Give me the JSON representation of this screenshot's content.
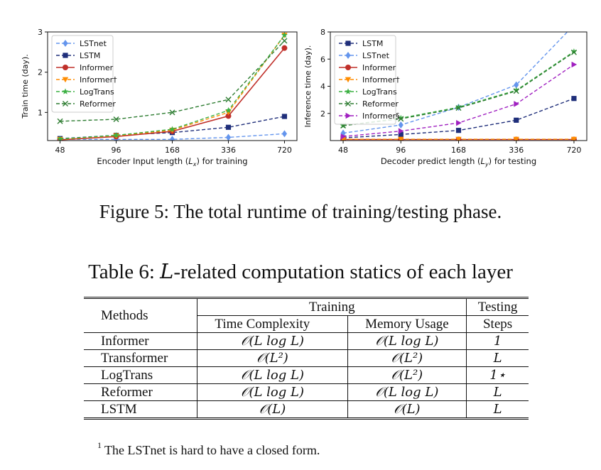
{
  "figure": {
    "caption": "Figure 5: The total runtime of training/testing phase.",
    "charts_are_in": "chart_data"
  },
  "chart_data": [
    {
      "type": "line",
      "title": "",
      "xlabel": "Encoder Input length (L_x) for training",
      "ylabel": "Train time (day).",
      "categories": [
        "48",
        "96",
        "168",
        "336",
        "720"
      ],
      "ylim": [
        0.3,
        3
      ],
      "yticks": [
        1,
        2,
        3
      ],
      "x_scale": "categorical, evenly spaced",
      "legend_position": "top-left",
      "series": [
        {
          "name": "LSTnet",
          "color": "#6495ed",
          "style": "dashed",
          "marker": "diamond",
          "values": [
            0.33,
            0.33,
            0.33,
            0.38,
            0.47
          ]
        },
        {
          "name": "LSTM",
          "color": "#1f2e7a",
          "style": "dashed",
          "marker": "square",
          "values": [
            0.35,
            0.43,
            0.5,
            0.63,
            0.9
          ]
        },
        {
          "name": "Informer",
          "color": "#c0302a",
          "style": "solid",
          "marker": "circle",
          "values": [
            0.32,
            0.4,
            0.53,
            0.91,
            2.6
          ]
        },
        {
          "name": "Informer†",
          "color": "#ff8c00",
          "style": "dashed",
          "marker": "triangle-down",
          "values": [
            0.33,
            0.42,
            0.56,
            1.0,
            2.92
          ]
        },
        {
          "name": "LogTrans",
          "color": "#3cb043",
          "style": "dashed",
          "marker": "star",
          "values": [
            0.34,
            0.43,
            0.58,
            1.05,
            2.92
          ]
        },
        {
          "name": "Reformer",
          "color": "#2e7d32",
          "style": "dashed",
          "marker": "x",
          "values": [
            0.78,
            0.83,
            1.0,
            1.32,
            2.78
          ]
        }
      ]
    },
    {
      "type": "line",
      "title": "",
      "xlabel": "Decoder predict length (L_y) for testing",
      "ylabel": "Inference time (day).",
      "categories": [
        "48",
        "96",
        "168",
        "336",
        "720"
      ],
      "ylim": [
        0,
        8
      ],
      "yticks": [
        2,
        4,
        6,
        8
      ],
      "x_scale": "categorical, evenly spaced",
      "legend_position": "top-left",
      "series": [
        {
          "name": "LSTM",
          "color": "#1f2e7a",
          "style": "dashed",
          "marker": "square",
          "values": [
            0.2,
            0.45,
            0.75,
            1.5,
            3.1
          ]
        },
        {
          "name": "LSTnet",
          "color": "#6495ed",
          "style": "dashed",
          "marker": "diamond",
          "values": [
            0.55,
            1.15,
            2.45,
            4.1,
            8.5
          ]
        },
        {
          "name": "Informer",
          "color": "#c0302a",
          "style": "solid",
          "marker": "circle",
          "values": [
            0.08,
            0.08,
            0.08,
            0.08,
            0.08
          ]
        },
        {
          "name": "Informer†",
          "color": "#ff8c00",
          "style": "dashed",
          "marker": "triangle-down",
          "values": [
            0.1,
            0.1,
            0.1,
            0.1,
            0.1
          ]
        },
        {
          "name": "LogTrans",
          "color": "#3cb043",
          "style": "dashed",
          "marker": "star",
          "values": [
            1.1,
            1.65,
            2.45,
            3.7,
            6.55
          ]
        },
        {
          "name": "Reformer",
          "color": "#2e7d32",
          "style": "dashed",
          "marker": "x",
          "values": [
            1.1,
            1.6,
            2.4,
            3.65,
            6.5
          ]
        },
        {
          "name": "Informer§",
          "color": "#a020c0",
          "style": "dashed",
          "marker": "triangle-right",
          "values": [
            0.3,
            0.7,
            1.3,
            2.7,
            5.6
          ]
        }
      ]
    }
  ],
  "table": {
    "caption_prefix": "Table 6: ",
    "caption_var": "L",
    "caption_suffix": "-related computation statics of each layer",
    "header": {
      "methods": "Methods",
      "training": "Training",
      "testing": "Testing",
      "time_complexity": "Time Complexity",
      "memory_usage": "Memory Usage",
      "steps": "Steps"
    },
    "rows": [
      {
        "method": "Informer",
        "time": "𝒪(L log L)",
        "memory": "𝒪(L log L)",
        "steps": "1"
      },
      {
        "method": "Transformer",
        "time": "𝒪(L²)",
        "memory": "𝒪(L²)",
        "steps": "L"
      },
      {
        "method": "LogTrans",
        "time": "𝒪(L log L)",
        "memory": "𝒪(L²)",
        "steps": "1⋆"
      },
      {
        "method": "Reformer",
        "time": "𝒪(L log L)",
        "memory": "𝒪(L log L)",
        "steps": "L"
      },
      {
        "method": "LSTM",
        "time": "𝒪(L)",
        "memory": "𝒪(L)",
        "steps": "L"
      }
    ],
    "footnote_mark": "1",
    "footnote": "The LSTnet is hard to have a closed form."
  }
}
